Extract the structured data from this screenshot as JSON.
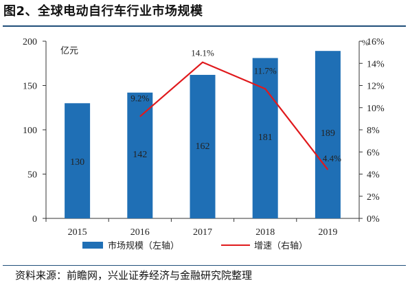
{
  "title": "图2、全球电动自行车行业市场规模",
  "source": "资料来源：前瞻网，兴业证券经济与金融研究院整理",
  "chart_data": {
    "type": "bar",
    "categories": [
      "2015",
      "2016",
      "2017",
      "2018",
      "2019"
    ],
    "series": [
      {
        "name": "市场规模（左轴）",
        "type": "bar",
        "axis": "left",
        "values": [
          130,
          142,
          162,
          181,
          189
        ],
        "labels": [
          "130",
          "142",
          "162",
          "181",
          "189"
        ],
        "color": "#1f6fb5"
      },
      {
        "name": "增速（右轴）",
        "type": "line",
        "axis": "right",
        "values": [
          9.2,
          14.1,
          11.7,
          4.4
        ],
        "x": [
          "2016",
          "2017",
          "2018",
          "2019"
        ],
        "labels": [
          "9.2%",
          "14.1%",
          "11.7%",
          "4.4%"
        ],
        "color": "#e0191c"
      }
    ],
    "left_axis": {
      "unit": "亿元",
      "min": 0,
      "max": 200,
      "ticks": [
        "0",
        "50",
        "100",
        "150",
        "200"
      ]
    },
    "right_axis": {
      "unit": "%",
      "min": 0,
      "max": 16,
      "ticks": [
        "0%",
        "2%",
        "4%",
        "6%",
        "8%",
        "10%",
        "12%",
        "14%",
        "16%"
      ]
    },
    "grid": false,
    "legend_position": "bottom"
  }
}
